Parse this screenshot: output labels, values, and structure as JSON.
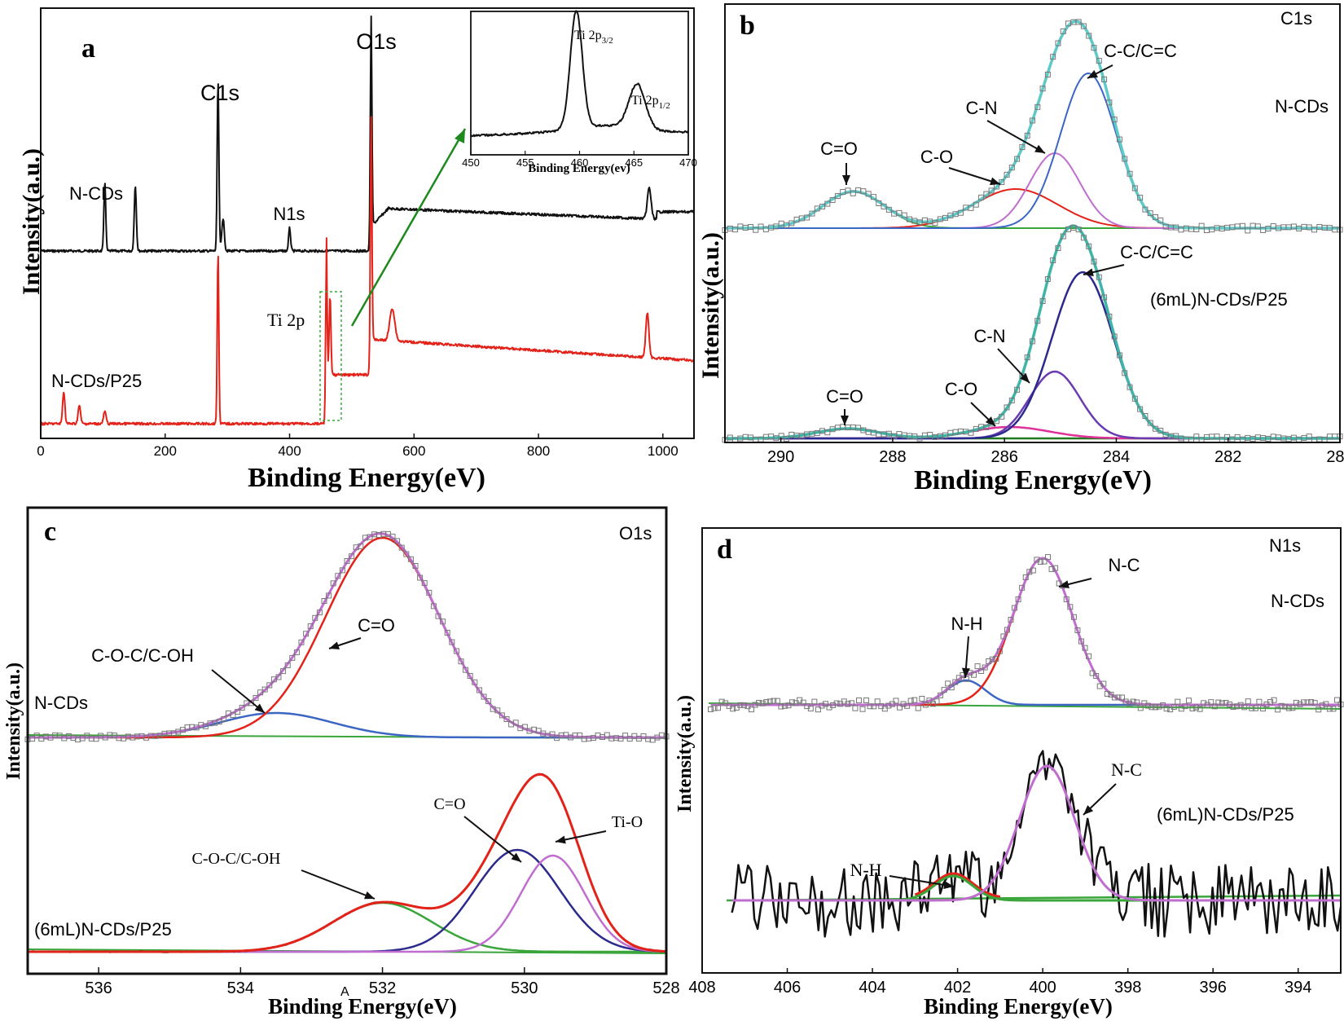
{
  "figure": {
    "colors": {
      "black": "#111111",
      "red": "#e32219",
      "blue": "#3b66c4",
      "purple": "#c06dd0",
      "cyan": "#5fc9c8",
      "green": "#3aa53a",
      "navy": "#2b2a8c",
      "darkgreen": "#1f7a1f",
      "violet": "#6a3bb0",
      "magenta": "#e0309a",
      "olive": "#d4a017",
      "teal": "#3fb5a8"
    }
  },
  "chart_data": [
    {
      "id": "a",
      "type": "line",
      "panel_label": "a",
      "xlabel": "Binding Energy(eV)",
      "ylabel": "Intensity(a.u.)",
      "xlim": [
        0,
        1050
      ],
      "xticks": [
        "0",
        "200",
        "400",
        "600",
        "800",
        "1000"
      ],
      "xtick_values": [
        0,
        200,
        400,
        600,
        800,
        1000
      ],
      "series": [
        {
          "name": "N-CDs",
          "color": "black",
          "peaks": [
            {
              "x": 103,
              "label": ""
            },
            {
              "x": 152,
              "label": ""
            },
            {
              "x": 285,
              "label": "C1s"
            },
            {
              "x": 400,
              "label": "N1s"
            },
            {
              "x": 531,
              "label": "O1s"
            },
            {
              "x": 978,
              "label": ""
            }
          ]
        },
        {
          "name": "N-CDs/P25",
          "color": "red",
          "peaks": [
            {
              "x": 37,
              "label": ""
            },
            {
              "x": 62,
              "label": ""
            },
            {
              "x": 103,
              "label": ""
            },
            {
              "x": 285,
              "label": "C1s"
            },
            {
              "x": 459,
              "label": "Ti 2p"
            },
            {
              "x": 531,
              "label": "O1s"
            },
            {
              "x": 565,
              "label": ""
            },
            {
              "x": 975,
              "label": ""
            }
          ]
        }
      ],
      "annotations": {
        "c1s": "C1s",
        "o1s": "O1s",
        "n1s": "N1s",
        "ti2p": "Ti 2p",
        "series_top": "N-CDs",
        "series_bottom": "N-CDs/P25"
      },
      "inset": {
        "xlabel": "Binding Energy(ev)",
        "xlim": [
          450,
          470
        ],
        "xticks": [
          "450",
          "455",
          "460",
          "465",
          "470"
        ],
        "xtick_values": [
          450,
          455,
          460,
          465,
          470
        ],
        "peaks": [
          {
            "x": 459.7,
            "label_main": "Ti 2p",
            "label_sub": "3/2"
          },
          {
            "x": 465.3,
            "label_main": "Ti 2p",
            "label_sub": "1/2"
          }
        ]
      }
    },
    {
      "id": "b",
      "type": "line",
      "panel_label": "b",
      "xlabel": "Binding Energy(eV)",
      "ylabel": "Intensity(a.u.)",
      "xlim": [
        291,
        280
      ],
      "xticks": [
        "290",
        "288",
        "286",
        "284",
        "282",
        "280"
      ],
      "xtick_values": [
        290,
        288,
        286,
        284,
        282,
        280
      ],
      "core_level": "C1s",
      "sections": [
        {
          "sample": "N-CDs",
          "components": [
            {
              "name": "C=O",
              "center": 288.7,
              "color": "green"
            },
            {
              "name": "C-O",
              "center": 285.8,
              "color": "red"
            },
            {
              "name": "C-N",
              "center": 285.1,
              "color": "purple"
            },
            {
              "name": "C-C/C=C",
              "center": 284.5,
              "color": "blue"
            }
          ]
        },
        {
          "sample": "(6mL)N-CDs/P25",
          "components": [
            {
              "name": "C=O",
              "center": 288.8,
              "color": "darkgreen"
            },
            {
              "name": "C-O",
              "center": 285.9,
              "color": "magenta"
            },
            {
              "name": "C-N",
              "center": 285.1,
              "color": "violet"
            },
            {
              "name": "C-C/C=C",
              "center": 284.6,
              "color": "navy"
            }
          ]
        }
      ]
    },
    {
      "id": "c",
      "type": "line",
      "panel_label": "c",
      "xlabel": "Binding Energy(eV)",
      "ylabel": "Intensity(a.u.)",
      "xlim": [
        537,
        528
      ],
      "xticks": [
        "536",
        "534",
        "532",
        "530",
        "528"
      ],
      "xtick_values": [
        536,
        534,
        532,
        530,
        528
      ],
      "core_level": "O1s",
      "sections": [
        {
          "sample": "N-CDs",
          "components": [
            {
              "name": "C-O-C/C-OH",
              "center": 533.5,
              "color": "blue"
            },
            {
              "name": "C=O",
              "center": 532.0,
              "color": "red"
            }
          ]
        },
        {
          "sample": "(6mL)N-CDs/P25",
          "components": [
            {
              "name": "C-O-C/C-OH",
              "center": 532.0,
              "color": "green"
            },
            {
              "name": "C=O",
              "center": 530.1,
              "color": "navy"
            },
            {
              "name": "Ti-O",
              "center": 529.6,
              "color": "purple"
            }
          ]
        }
      ],
      "stray_label": "A"
    },
    {
      "id": "d",
      "type": "line",
      "panel_label": "d",
      "xlabel": "Binding Energy(eV)",
      "ylabel": "Intensity(a.u.)",
      "xlim": [
        408,
        393
      ],
      "xticks": [
        "408",
        "406",
        "404",
        "402",
        "400",
        "398",
        "396",
        "394"
      ],
      "xtick_values": [
        408,
        406,
        404,
        402,
        400,
        398,
        396,
        394
      ],
      "core_level": "N1s",
      "sections": [
        {
          "sample": "N-CDs",
          "components": [
            {
              "name": "N-H",
              "center": 401.8,
              "color": "blue"
            },
            {
              "name": "N-C",
              "center": 400.0,
              "color": "red"
            }
          ]
        },
        {
          "sample": "(6mL)N-CDs/P25",
          "components": [
            {
              "name": "N-H",
              "center": 402.1,
              "color": "green"
            },
            {
              "name": "N-C",
              "center": 399.9,
              "color": "purple"
            }
          ]
        }
      ]
    }
  ]
}
